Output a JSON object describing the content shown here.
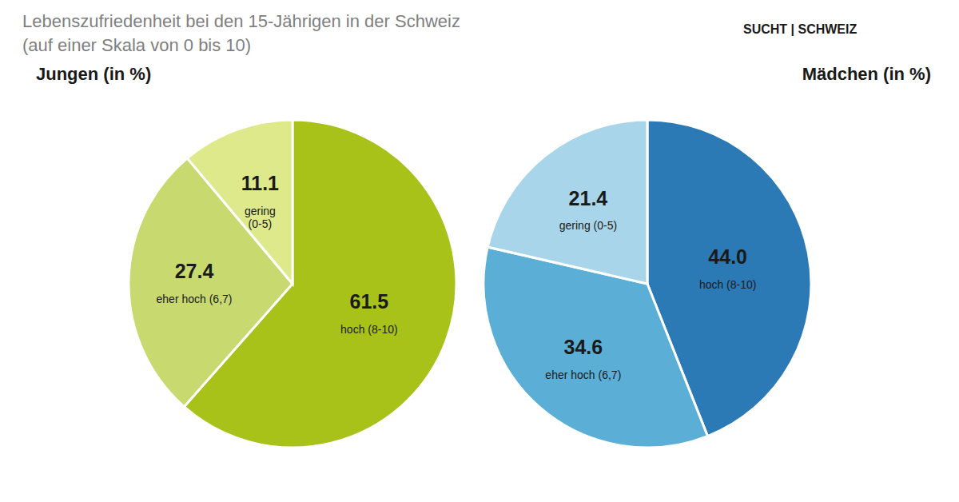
{
  "chart_data": [
    {
      "type": "pie",
      "title": "Jungen (in %)",
      "annotations": [
        "Lebenszufriedenheit bei den 15-Jährigen in der Schweiz",
        "(auf einer Skala von 0 bis 10)",
        "SUCHT | SCHWEIZ"
      ],
      "categories": [
        "hoch (8-10)",
        "eher hoch (6,7)",
        "gering\n(0-5)"
      ],
      "values": [
        61.5,
        27.4,
        11.1
      ],
      "colors": [
        "#a8c21a",
        "#c8d96f",
        "#dde98a"
      ],
      "data_labels": true
    },
    {
      "type": "pie",
      "title": "Mädchen (in %)",
      "categories": [
        "hoch (8-10)",
        "eher hoch (6,7)",
        "gering (0-5)"
      ],
      "values": [
        44.0,
        34.6,
        21.4
      ],
      "value_labels": [
        "44.0",
        "34.6",
        "21.4"
      ],
      "colors": [
        "#2b7ab5",
        "#5bafd6",
        "#a8d5ea"
      ],
      "data_labels": true
    }
  ]
}
